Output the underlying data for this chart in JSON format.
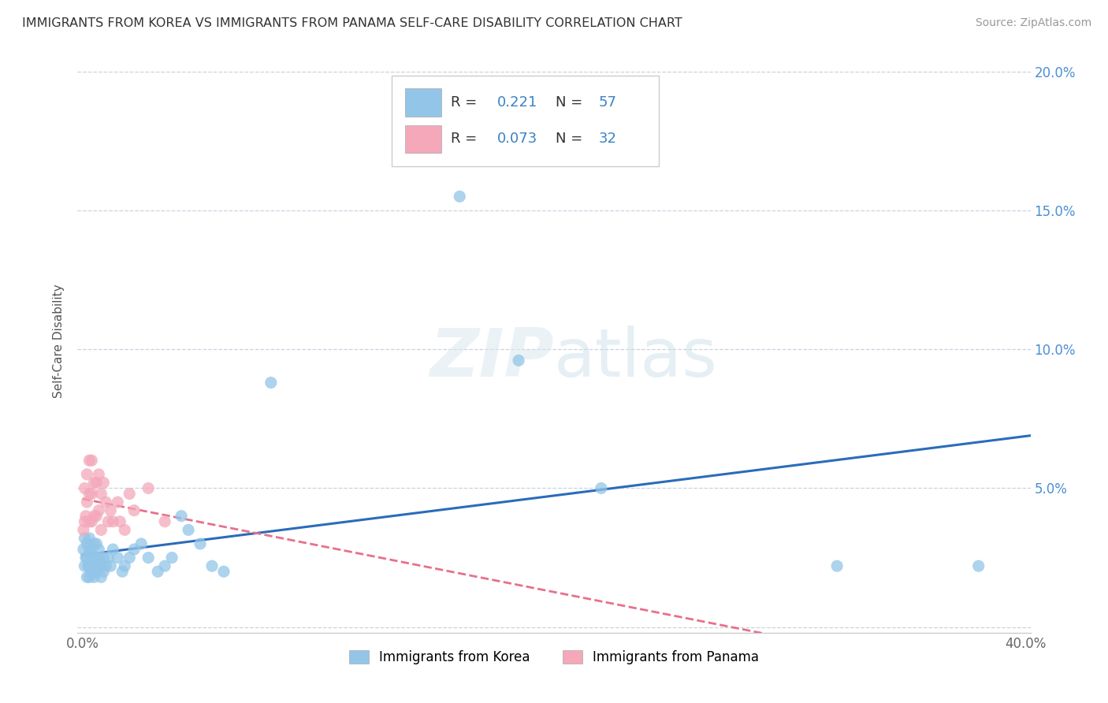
{
  "title": "IMMIGRANTS FROM KOREA VS IMMIGRANTS FROM PANAMA SELF-CARE DISABILITY CORRELATION CHART",
  "source": "Source: ZipAtlas.com",
  "xlabel_korea": "Immigrants from Korea",
  "xlabel_panama": "Immigrants from Panama",
  "ylabel": "Self-Care Disability",
  "xlim": [
    -0.002,
    0.402
  ],
  "ylim": [
    -0.002,
    0.208
  ],
  "xticks": [
    0.0,
    0.05,
    0.1,
    0.15,
    0.2,
    0.25,
    0.3,
    0.35,
    0.4
  ],
  "yticks": [
    0.0,
    0.05,
    0.1,
    0.15,
    0.2
  ],
  "right_ytick_labels": [
    "",
    "5.0%",
    "10.0%",
    "15.0%",
    "20.0%"
  ],
  "xtick_labels": [
    "0.0%",
    "",
    "",
    "",
    "",
    "",
    "",
    "",
    "40.0%"
  ],
  "korea_R": 0.221,
  "korea_N": 57,
  "panama_R": 0.073,
  "panama_N": 32,
  "korea_color": "#92C5E8",
  "panama_color": "#F4A8BA",
  "korea_line_color": "#2B6CB8",
  "panama_line_color": "#E8708A",
  "background_color": "#ffffff",
  "grid_color": "#c8d4e0",
  "watermark": "ZIPatlas",
  "korea_x": [
    0.0005,
    0.001,
    0.001,
    0.0015,
    0.002,
    0.002,
    0.002,
    0.0025,
    0.003,
    0.003,
    0.003,
    0.003,
    0.0035,
    0.004,
    0.004,
    0.004,
    0.004,
    0.0045,
    0.005,
    0.005,
    0.005,
    0.005,
    0.006,
    0.006,
    0.006,
    0.007,
    0.007,
    0.007,
    0.008,
    0.008,
    0.009,
    0.009,
    0.01,
    0.011,
    0.012,
    0.013,
    0.015,
    0.017,
    0.018,
    0.02,
    0.022,
    0.025,
    0.028,
    0.032,
    0.035,
    0.038,
    0.042,
    0.045,
    0.05,
    0.055,
    0.06,
    0.08,
    0.16,
    0.185,
    0.22,
    0.32,
    0.38
  ],
  "korea_y": [
    0.028,
    0.022,
    0.032,
    0.025,
    0.018,
    0.025,
    0.03,
    0.022,
    0.018,
    0.022,
    0.028,
    0.032,
    0.025,
    0.02,
    0.025,
    0.028,
    0.022,
    0.025,
    0.018,
    0.022,
    0.025,
    0.03,
    0.02,
    0.025,
    0.03,
    0.022,
    0.025,
    0.028,
    0.018,
    0.022,
    0.02,
    0.025,
    0.022,
    0.025,
    0.022,
    0.028,
    0.025,
    0.02,
    0.022,
    0.025,
    0.028,
    0.03,
    0.025,
    0.02,
    0.022,
    0.025,
    0.04,
    0.035,
    0.03,
    0.022,
    0.02,
    0.088,
    0.155,
    0.096,
    0.05,
    0.022,
    0.022
  ],
  "panama_x": [
    0.0005,
    0.001,
    0.001,
    0.0015,
    0.002,
    0.002,
    0.003,
    0.003,
    0.003,
    0.004,
    0.004,
    0.004,
    0.005,
    0.005,
    0.006,
    0.006,
    0.007,
    0.007,
    0.008,
    0.008,
    0.009,
    0.01,
    0.011,
    0.012,
    0.013,
    0.015,
    0.016,
    0.018,
    0.02,
    0.022,
    0.028,
    0.035
  ],
  "panama_y": [
    0.035,
    0.038,
    0.05,
    0.04,
    0.055,
    0.045,
    0.06,
    0.048,
    0.038,
    0.06,
    0.048,
    0.038,
    0.052,
    0.04,
    0.052,
    0.04,
    0.055,
    0.042,
    0.048,
    0.035,
    0.052,
    0.045,
    0.038,
    0.042,
    0.038,
    0.045,
    0.038,
    0.035,
    0.048,
    0.042,
    0.05,
    0.038
  ]
}
